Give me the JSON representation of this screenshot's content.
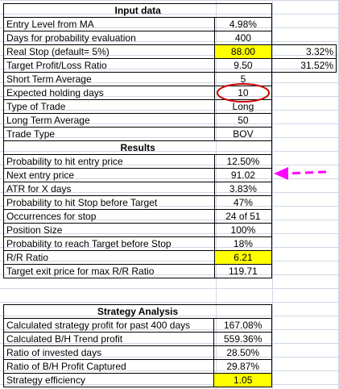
{
  "input_data": {
    "title": "Input data",
    "rows": [
      {
        "label": "Entry Level from MA",
        "value": "4.98%",
        "extra": ""
      },
      {
        "label": "Days for probability evaluation",
        "value": "400",
        "extra": ""
      },
      {
        "label": "Real Stop (default= 5%)",
        "value": "88.00",
        "extra": "3.32%"
      },
      {
        "label": "Target Profit/Loss Ratio",
        "value": "9.50",
        "extra": "31.52%"
      },
      {
        "label": "Short Term Average",
        "value": "5",
        "extra": ""
      },
      {
        "label": "Expected holding days",
        "value": "10",
        "extra": ""
      },
      {
        "label": "Type of Trade",
        "value": "Long",
        "extra": ""
      },
      {
        "label": "Long Term Average",
        "value": "50",
        "extra": ""
      },
      {
        "label": "Trade Type",
        "value": "BOV",
        "extra": ""
      }
    ]
  },
  "results": {
    "title": "Results",
    "rows": [
      {
        "label": "Probability to hit entry price",
        "value": "12.50%"
      },
      {
        "label": "Next entry price",
        "value": "91.02"
      },
      {
        "label": "ATR for X days",
        "value": "3.83%"
      },
      {
        "label": "Probability to hit Stop before Target",
        "value": "47%"
      },
      {
        "label": "Occurrences for stop",
        "value": "24 of 51"
      },
      {
        "label": "Position Size",
        "value": "100%"
      },
      {
        "label": "Probability to reach Target before Stop",
        "value": "18%"
      },
      {
        "label": "R/R Ratio",
        "value": "6.21"
      },
      {
        "label": "Target exit price for max R/R Ratio",
        "value": "119.71"
      }
    ]
  },
  "strategy": {
    "title": "Strategy Analysis",
    "rows": [
      {
        "label": "Calculated strategy profit for past 400 days",
        "value": "167.08%"
      },
      {
        "label": "Calculated B/H Trend profit",
        "value": "559.36%"
      },
      {
        "label": "Ratio of invested days",
        "value": "28.50%"
      },
      {
        "label": "Ratio of B/H Profit Captured",
        "value": "29.87%"
      },
      {
        "label": "Strategy efficiency",
        "value": "1.05"
      }
    ]
  },
  "colors": {
    "highlight": "#ffff00",
    "circle": "#cc0000",
    "arrow": "#ff00ff"
  }
}
